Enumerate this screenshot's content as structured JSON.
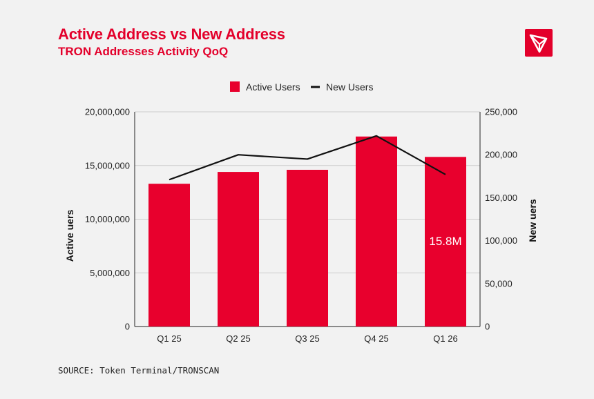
{
  "header": {
    "title": "Active Address vs New Address",
    "subtitle": "TRON Addresses Activity QoQ",
    "logo_icon": "tron-logo-icon"
  },
  "footer": {
    "source": "SOURCE: Token Terminal/TRONSCAN"
  },
  "colors": {
    "accent": "#e3002b",
    "bar": "#e8002d",
    "line": "#111111",
    "background": "#f2f2f2",
    "grid": "#cccccc"
  },
  "chart_data": {
    "type": "bar",
    "categories": [
      "Q1 25",
      "Q2 25",
      "Q3 25",
      "Q4 25",
      "Q1 26"
    ],
    "series": [
      {
        "name": "Active Users",
        "type": "bar",
        "axis": "left",
        "values": [
          13300000,
          14400000,
          14600000,
          17700000,
          15800000
        ]
      },
      {
        "name": "New Users",
        "type": "line",
        "axis": "right",
        "values": [
          171000,
          200000,
          195000,
          222000,
          177000
        ]
      }
    ],
    "y_left": {
      "label": "Active uers",
      "min": 0,
      "max": 20000000,
      "ticks": [
        0,
        5000000,
        10000000,
        15000000,
        20000000
      ],
      "tick_labels": [
        "0",
        "5,000,000",
        "10,000,000",
        "15,000,000",
        "20,000,000"
      ]
    },
    "y_right": {
      "label": "New uers",
      "min": 0,
      "max": 250000,
      "ticks": [
        0,
        50000,
        100000,
        150000,
        200000,
        250000
      ],
      "tick_labels": [
        "0",
        "50,000",
        "100,000",
        "150,000",
        "200,000",
        "250,000"
      ]
    },
    "data_labels": [
      {
        "series": 0,
        "index": 4,
        "text": "15.8M"
      }
    ],
    "legend": {
      "position": "top-center",
      "items": [
        "Active Users",
        "New Users"
      ]
    },
    "grid": true
  }
}
